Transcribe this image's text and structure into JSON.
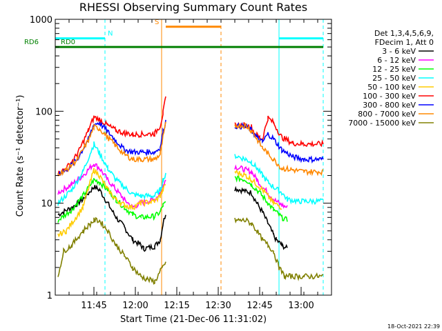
{
  "chart_data": {
    "type": "line",
    "title": "RHESSI Observing Summary Count Rates",
    "xlabel": "Start Time (21-Dec-06 11:31:02)",
    "ylabel": "Count Rate (s⁻¹ detector⁻¹)",
    "yscale": "log",
    "ylim": [
      1,
      1000
    ],
    "xlim_minutes": [
      0,
      100
    ],
    "x_ticks": [
      {
        "t": 14,
        "label": "11:45"
      },
      {
        "t": 29,
        "label": "12:00"
      },
      {
        "t": 44,
        "label": "12:15"
      },
      {
        "t": 59,
        "label": "12:30"
      },
      {
        "t": 74,
        "label": "12:45"
      },
      {
        "t": 89,
        "label": "13:00"
      }
    ],
    "y_ticks": [
      {
        "v": 1,
        "label": "1"
      },
      {
        "v": 10,
        "label": "10"
      },
      {
        "v": 100,
        "label": "100"
      },
      {
        "v": 1000,
        "label": "1000"
      }
    ],
    "legend_header": [
      "Det 1,3,4,5,6,9,",
      "FDecim 1, Att 0"
    ],
    "series": [
      {
        "name": "3 - 6 keV",
        "color": "#000000",
        "points": [
          [
            1,
            7.5
          ],
          [
            6,
            9
          ],
          [
            10,
            11
          ],
          [
            14,
            15
          ],
          [
            16,
            14
          ],
          [
            19,
            10
          ],
          [
            22,
            7
          ],
          [
            25,
            5.5
          ],
          [
            28,
            4
          ],
          [
            31,
            3.5
          ],
          [
            32,
            3.2
          ],
          [
            36,
            3.4
          ],
          [
            38,
            4
          ],
          [
            39,
            6
          ],
          [
            40,
            7.8
          ],
          [
            65,
            14.5
          ],
          [
            69,
            13.5
          ],
          [
            71,
            13
          ],
          [
            73,
            10
          ],
          [
            75,
            8
          ],
          [
            77,
            6
          ],
          [
            79,
            4.5
          ],
          [
            80,
            4
          ],
          [
            82,
            3.5
          ],
          [
            84,
            3.2
          ]
        ]
      },
      {
        "name": "6 - 12 keV",
        "color": "#ff00ff",
        "points": [
          [
            1,
            13
          ],
          [
            6,
            16
          ],
          [
            10,
            20
          ],
          [
            14,
            27
          ],
          [
            16,
            24
          ],
          [
            19,
            18
          ],
          [
            22,
            14
          ],
          [
            25,
            11
          ],
          [
            28,
            9
          ],
          [
            31,
            10
          ],
          [
            36,
            11
          ],
          [
            38,
            13
          ],
          [
            39,
            16
          ],
          [
            40,
            18
          ],
          [
            65,
            25
          ],
          [
            69,
            23
          ],
          [
            71,
            22
          ],
          [
            73,
            18
          ],
          [
            75,
            15
          ],
          [
            77,
            13
          ],
          [
            79,
            11
          ],
          [
            82,
            9.5
          ],
          [
            84,
            9
          ]
        ]
      },
      {
        "name": "12 - 25 keV",
        "color": "#00ff00",
        "points": [
          [
            1,
            6.5
          ],
          [
            6,
            8.5
          ],
          [
            10,
            12
          ],
          [
            14,
            18
          ],
          [
            16,
            17
          ],
          [
            19,
            14
          ],
          [
            22,
            11
          ],
          [
            25,
            9
          ],
          [
            28,
            7.5
          ],
          [
            31,
            7
          ],
          [
            36,
            7.2
          ],
          [
            38,
            8
          ],
          [
            39,
            9.5
          ],
          [
            40,
            10
          ],
          [
            65,
            19
          ],
          [
            69,
            18
          ],
          [
            71,
            16
          ],
          [
            73,
            14
          ],
          [
            75,
            12
          ],
          [
            77,
            10
          ],
          [
            79,
            8.5
          ],
          [
            82,
            7
          ],
          [
            84,
            6.5
          ]
        ]
      },
      {
        "name": "25 - 50 keV",
        "color": "#00ffff",
        "points": [
          [
            1,
            10
          ],
          [
            6,
            14
          ],
          [
            10,
            22
          ],
          [
            14,
            44
          ],
          [
            16,
            35
          ],
          [
            19,
            24
          ],
          [
            22,
            18
          ],
          [
            25,
            15
          ],
          [
            28,
            12.5
          ],
          [
            31,
            12
          ],
          [
            36,
            12
          ],
          [
            38,
            14
          ],
          [
            39,
            18
          ],
          [
            40,
            20
          ],
          [
            65,
            33
          ],
          [
            69,
            30
          ],
          [
            71,
            28
          ],
          [
            73,
            24
          ],
          [
            75,
            20
          ],
          [
            77,
            17
          ],
          [
            79,
            15
          ],
          [
            82,
            13
          ],
          [
            84,
            11
          ],
          [
            88,
            10.5
          ],
          [
            97,
            10.5
          ]
        ]
      },
      {
        "name": "50 - 100 keV",
        "color": "#ffcc00",
        "points": [
          [
            1,
            4.5
          ],
          [
            4,
            5
          ],
          [
            10,
            9
          ],
          [
            14,
            23
          ],
          [
            16,
            20
          ],
          [
            19,
            14
          ],
          [
            22,
            11
          ],
          [
            25,
            9.5
          ],
          [
            28,
            9
          ],
          [
            31,
            10
          ],
          [
            36,
            10.5
          ],
          [
            38,
            12
          ],
          [
            39,
            14
          ],
          [
            40,
            16
          ],
          [
            65,
            22
          ],
          [
            69,
            20
          ],
          [
            71,
            18
          ],
          [
            73,
            16
          ],
          [
            75,
            14
          ],
          [
            77,
            12
          ],
          [
            79,
            10
          ],
          [
            82,
            9
          ]
        ]
      },
      {
        "name": "100 - 300 keV",
        "color": "#ff0000",
        "points": [
          [
            1,
            21
          ],
          [
            4,
            24
          ],
          [
            8,
            34
          ],
          [
            12,
            62
          ],
          [
            14,
            86
          ],
          [
            16,
            82
          ],
          [
            19,
            70
          ],
          [
            22,
            62
          ],
          [
            25,
            58
          ],
          [
            28,
            56
          ],
          [
            31,
            56
          ],
          [
            36,
            57
          ],
          [
            38,
            70
          ],
          [
            39,
            95
          ],
          [
            40,
            140
          ],
          [
            65,
            71
          ],
          [
            69,
            70
          ],
          [
            71,
            68
          ],
          [
            72,
            58
          ],
          [
            74,
            52
          ],
          [
            75,
            50
          ],
          [
            77,
            85
          ],
          [
            79,
            75
          ],
          [
            82,
            52
          ],
          [
            86,
            45
          ],
          [
            90,
            44
          ],
          [
            97,
            44
          ]
        ]
      },
      {
        "name": "300 - 800 keV",
        "color": "#0000ff",
        "points": [
          [
            1,
            21
          ],
          [
            4,
            23
          ],
          [
            8,
            30
          ],
          [
            12,
            50
          ],
          [
            14,
            72
          ],
          [
            16,
            75
          ],
          [
            19,
            60
          ],
          [
            22,
            48
          ],
          [
            25,
            38
          ],
          [
            28,
            36
          ],
          [
            31,
            36
          ],
          [
            36,
            36
          ],
          [
            38,
            40
          ],
          [
            39,
            60
          ],
          [
            40,
            78
          ],
          [
            65,
            69
          ],
          [
            69,
            68
          ],
          [
            71,
            62
          ],
          [
            73,
            52
          ],
          [
            75,
            46
          ],
          [
            77,
            57
          ],
          [
            79,
            50
          ],
          [
            82,
            38
          ],
          [
            86,
            32
          ],
          [
            90,
            30
          ],
          [
            97,
            30
          ]
        ]
      },
      {
        "name": "800 - 7000 keV",
        "color": "#ff8800",
        "points": [
          [
            1,
            21
          ],
          [
            4,
            23
          ],
          [
            8,
            30
          ],
          [
            12,
            48
          ],
          [
            14,
            67
          ],
          [
            16,
            65
          ],
          [
            19,
            52
          ],
          [
            22,
            42
          ],
          [
            25,
            34
          ],
          [
            28,
            30
          ],
          [
            31,
            30
          ],
          [
            36,
            30
          ],
          [
            38,
            34
          ],
          [
            39,
            52
          ],
          [
            40,
            72
          ],
          [
            65,
            70
          ],
          [
            69,
            70
          ],
          [
            71,
            62
          ],
          [
            73,
            50
          ],
          [
            75,
            40
          ],
          [
            77,
            35
          ],
          [
            79,
            30
          ],
          [
            82,
            24
          ],
          [
            86,
            23
          ],
          [
            90,
            22
          ],
          [
            97,
            22
          ]
        ]
      },
      {
        "name": "7000 - 15000 keV",
        "color": "#808000",
        "points": [
          [
            1,
            1.6
          ],
          [
            3,
            3
          ],
          [
            6,
            3.5
          ],
          [
            10,
            5
          ],
          [
            14,
            6.5
          ],
          [
            16,
            6.5
          ],
          [
            19,
            5
          ],
          [
            22,
            3.5
          ],
          [
            25,
            2.7
          ],
          [
            28,
            2
          ],
          [
            31,
            1.6
          ],
          [
            33,
            1.5
          ],
          [
            36,
            1.4
          ],
          [
            38,
            1.8
          ],
          [
            40,
            2.3
          ],
          [
            65,
            6.5
          ],
          [
            69,
            6.5
          ],
          [
            71,
            6
          ],
          [
            73,
            5
          ],
          [
            75,
            4
          ],
          [
            77,
            3.5
          ],
          [
            79,
            3
          ],
          [
            81,
            2
          ],
          [
            83,
            1.6
          ],
          [
            86,
            1.6
          ],
          [
            90,
            1.6
          ],
          [
            97,
            1.6
          ]
        ]
      }
    ],
    "state_bars": [
      {
        "label": "N",
        "color": "#00ffff",
        "level": 620,
        "segments": [
          [
            0,
            18
          ],
          [
            81,
            97
          ]
        ],
        "label_t": 19
      },
      {
        "label": "S",
        "color": "#ff8800",
        "level": 830,
        "segments": [
          [
            40,
            60
          ]
        ],
        "label_t": 36
      },
      {
        "label": "RD0",
        "color": "#008000",
        "level": 500,
        "segments": [
          [
            0,
            29
          ],
          [
            29,
            60
          ],
          [
            60,
            75
          ],
          [
            75,
            97
          ]
        ],
        "label_t": 2
      },
      {
        "label": "RD6",
        "color": "#008000",
        "level": 500,
        "segments": [],
        "label_t": -6
      }
    ],
    "vlines": [
      {
        "t": 18,
        "color": "#00ffff",
        "style": "dashed"
      },
      {
        "t": 38.5,
        "color": "#ff8800",
        "style": "solid"
      },
      {
        "t": 60,
        "color": "#ff8800",
        "style": "dashed"
      },
      {
        "t": 81,
        "color": "#00ffff",
        "style": "solid"
      },
      {
        "t": 97,
        "color": "#00ffff",
        "style": "dashed"
      }
    ],
    "data_gaps": [
      [
        40,
        63
      ]
    ],
    "timestamp": "18-Oct-2021 22:39"
  }
}
